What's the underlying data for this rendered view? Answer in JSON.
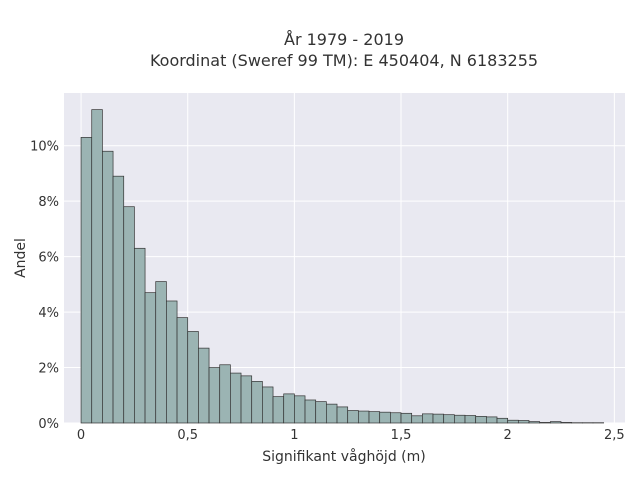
{
  "chart_data": {
    "type": "bar",
    "title": [
      "År 1979 - 2019",
      "Koordinat (Sweref 99 TM): E 450404, N 6183255"
    ],
    "xlabel": "Signifikant våghöjd (m)",
    "ylabel": "Andel",
    "bin_width": 0.05,
    "x_start": 0.0,
    "xlim": [
      -0.08,
      2.55
    ],
    "ylim": [
      0,
      0.119
    ],
    "x_ticks": [
      0,
      0.5,
      1,
      1.5,
      2,
      2.5
    ],
    "x_tick_labels": [
      "0",
      "0,5",
      "1",
      "1,5",
      "2",
      "2,5"
    ],
    "y_ticks": [
      0,
      0.02,
      0.04,
      0.06,
      0.08,
      0.1
    ],
    "y_tick_labels": [
      "0%",
      "2%",
      "4%",
      "6%",
      "8%",
      "10%"
    ],
    "grid": true,
    "background_color": "#e9e9f1",
    "bar_color": "#9bb4b3",
    "edge_color": "#333333",
    "values": [
      0.103,
      0.113,
      0.098,
      0.089,
      0.078,
      0.063,
      0.047,
      0.051,
      0.044,
      0.038,
      0.033,
      0.027,
      0.02,
      0.021,
      0.018,
      0.017,
      0.015,
      0.013,
      0.0095,
      0.0105,
      0.0098,
      0.0083,
      0.0077,
      0.0068,
      0.0058,
      0.0045,
      0.0043,
      0.0041,
      0.0039,
      0.0037,
      0.0035,
      0.0026,
      0.0033,
      0.0032,
      0.003,
      0.0028,
      0.0027,
      0.0024,
      0.0022,
      0.0017,
      0.001,
      0.0009,
      0.0005,
      0.0002,
      0.0005,
      0.0002,
      0.0001,
      0.0001,
      0.0001
    ]
  }
}
